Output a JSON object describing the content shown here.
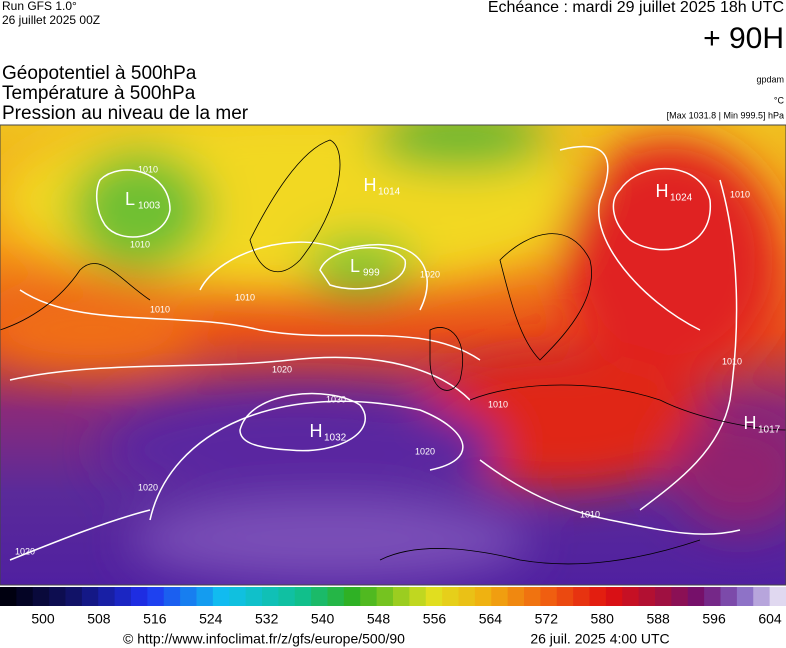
{
  "header": {
    "run": "Run GFS 1.0°",
    "run_date": "26 juillet 2025 00Z",
    "forecast": "Echéance : mardi 29 juillet 2025 18h UTC",
    "lead": "+ 90H",
    "fields": [
      "Géopotentiel à 500hPa",
      "Température à 500hPa",
      "Pression au niveau de la mer"
    ],
    "units": [
      "gpdam",
      "°C",
      "[Max 1031.8 | Min 999.5] hPa"
    ]
  },
  "map": {
    "centers": [
      {
        "kind": "L",
        "value": "1003"
      },
      {
        "kind": "H",
        "value": "1014"
      },
      {
        "kind": "L",
        "value": "999"
      },
      {
        "kind": "H",
        "value": "1024"
      },
      {
        "kind": "H",
        "value": "1032"
      },
      {
        "kind": "H",
        "value": "1017"
      }
    ],
    "isobar_labels": [
      "1010",
      "1010",
      "1010",
      "1010",
      "1020",
      "1030",
      "1020",
      "1020",
      "1020",
      "1010",
      "1010",
      "1020",
      "1010",
      "1010"
    ]
  },
  "colorbar": {
    "ticks": [
      "500",
      "508",
      "516",
      "524",
      "532",
      "540",
      "548",
      "556",
      "564",
      "572",
      "580",
      "588",
      "596",
      "604"
    ]
  },
  "footer": {
    "url": "© http://www.infoclimat.fr/z/gfs/europe/500/90",
    "date": "26 juil. 2025  4:00 UTC"
  }
}
